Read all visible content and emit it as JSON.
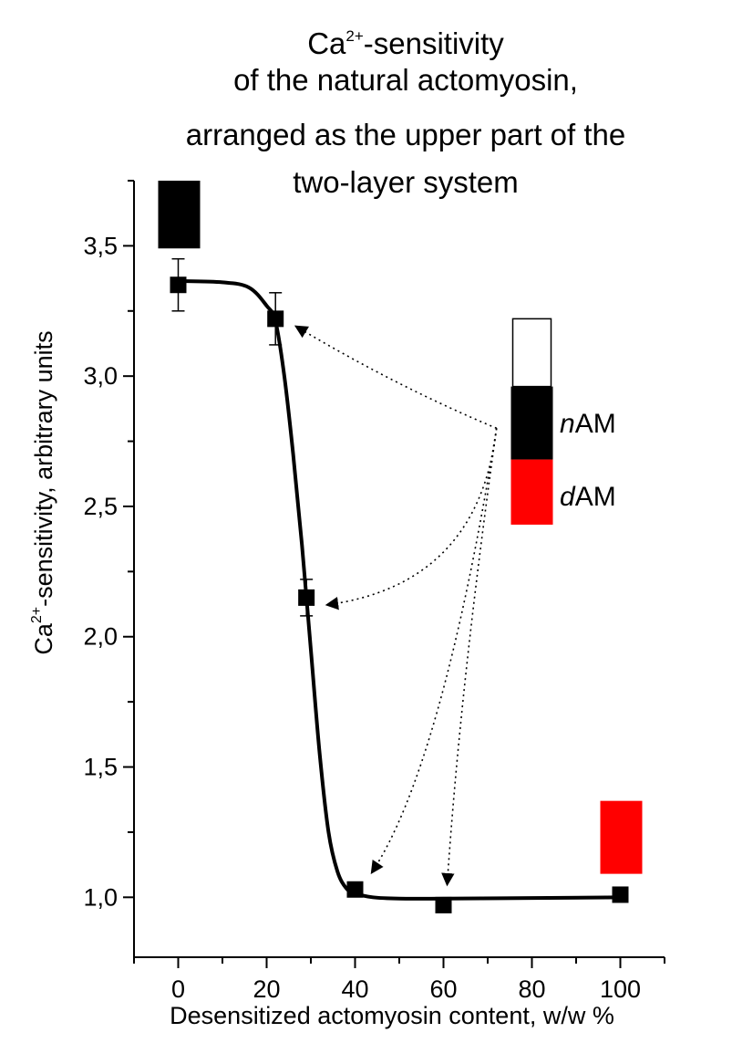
{
  "title": {
    "line1_base": "Ca",
    "line1_sup": "2+",
    "line1_rest": "-sensitivity",
    "line2": "of  the natural actomyosin,",
    "line3": "arranged as the upper part of the",
    "line4": "two-layer system"
  },
  "axes": {
    "xlabel": "Desensitized actomyosin content, w/w %",
    "ylabel_base": "Ca",
    "ylabel_sup": "2+",
    "ylabel_rest": "-sensitivity, arbitrary units"
  },
  "legend": {
    "n_prefix": "n",
    "n_rest": "AM",
    "d_prefix": "d",
    "d_rest": "AM"
  },
  "chart_data": {
    "type": "scatter",
    "x_label": "Desensitized actomyosin content, w/w %",
    "y_label": "Ca2+-sensitivity, arbitrary units",
    "xlim": [
      -10,
      110
    ],
    "ylim": [
      0.77,
      3.75
    ],
    "x_ticks": [
      0,
      20,
      40,
      60,
      80,
      100
    ],
    "y_ticks": [
      1.0,
      1.5,
      2.0,
      2.5,
      3.0,
      3.5
    ],
    "x_tick_labels": [
      "0",
      "20",
      "40",
      "60",
      "80",
      "100"
    ],
    "y_tick_labels": [
      "1,0",
      "1,5",
      "2,0",
      "2,5",
      "3,0",
      "3,5"
    ],
    "points": [
      {
        "x": 0,
        "y": 3.35,
        "err": 0.1
      },
      {
        "x": 22,
        "y": 3.22,
        "err": 0.1
      },
      {
        "x": 29,
        "y": 2.15,
        "err": 0.07
      },
      {
        "x": 40,
        "y": 1.03,
        "err": 0.02
      },
      {
        "x": 60,
        "y": 0.97,
        "err": 0.0
      },
      {
        "x": 100,
        "y": 1.01,
        "err": 0.0
      }
    ],
    "fit_curve": [
      [
        0,
        3.365
      ],
      [
        10,
        3.36
      ],
      [
        16,
        3.34
      ],
      [
        20,
        3.27
      ],
      [
        22,
        3.21
      ],
      [
        24,
        3.0
      ],
      [
        26,
        2.7
      ],
      [
        28,
        2.35
      ],
      [
        30,
        1.95
      ],
      [
        32,
        1.55
      ],
      [
        34,
        1.25
      ],
      [
        36,
        1.1
      ],
      [
        38,
        1.035
      ],
      [
        40,
        1.015
      ],
      [
        44,
        1.0
      ],
      [
        50,
        0.995
      ],
      [
        60,
        0.995
      ],
      [
        80,
        0.997
      ],
      [
        100,
        1.0
      ]
    ],
    "bars": [
      {
        "x": 0,
        "y_bottom": 3.49,
        "y_top": 3.75,
        "color": "#000000"
      },
      {
        "x": 100,
        "y_bottom": 1.09,
        "y_top": 1.37,
        "color": "#ff0000"
      }
    ],
    "legend_column": {
      "x": 80,
      "empty_top": 3.22,
      "black_top": 2.96,
      "red_top": 2.68,
      "red_bottom": 2.43,
      "colors": {
        "empty": "#ffffff",
        "n": "#000000",
        "d": "#ff0000"
      }
    },
    "arrows": {
      "origin": [
        72,
        2.8
      ],
      "targets": [
        [
          22,
          3.22
        ],
        [
          29,
          2.15
        ],
        [
          40,
          1.03
        ],
        [
          60,
          0.97
        ]
      ]
    }
  }
}
